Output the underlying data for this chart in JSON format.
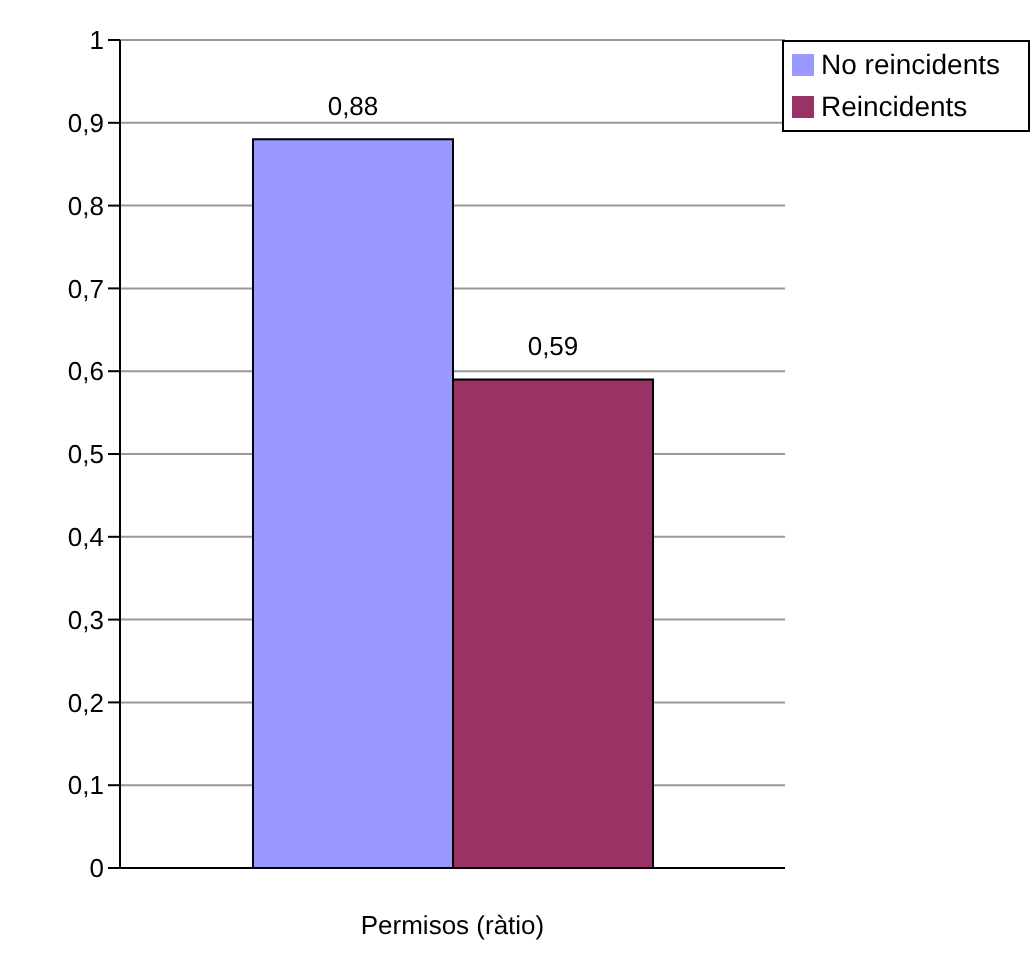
{
  "chart_data": {
    "type": "bar",
    "categories": [
      "Permisos (ràtio)"
    ],
    "series": [
      {
        "name": "No reincidents",
        "color": "#9999ff",
        "values": [
          0.88
        ],
        "value_labels": [
          "0,88"
        ]
      },
      {
        "name": "Reincidents",
        "color": "#993366",
        "values": [
          0.59
        ],
        "value_labels": [
          "0,59"
        ]
      }
    ],
    "ylim": [
      0,
      1
    ],
    "yticks": [
      {
        "value": 0,
        "label": "0"
      },
      {
        "value": 0.1,
        "label": "0,1"
      },
      {
        "value": 0.2,
        "label": "0,2"
      },
      {
        "value": 0.3,
        "label": "0,3"
      },
      {
        "value": 0.4,
        "label": "0,4"
      },
      {
        "value": 0.5,
        "label": "0,5"
      },
      {
        "value": 0.6,
        "label": "0,6"
      },
      {
        "value": 0.7,
        "label": "0,7"
      },
      {
        "value": 0.8,
        "label": "0,8"
      },
      {
        "value": 0.9,
        "label": "0,9"
      },
      {
        "value": 1,
        "label": "1"
      }
    ],
    "grid": "y",
    "legend": "top right"
  }
}
